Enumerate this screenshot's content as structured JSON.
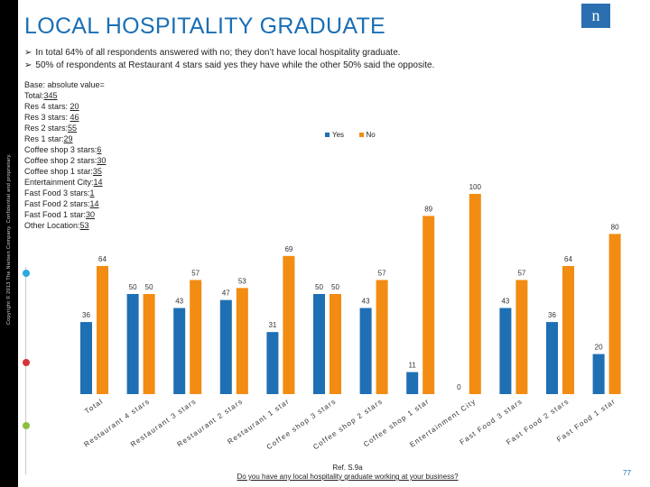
{
  "sidebar": {
    "copyright": "Copyright © 2013 The Nielsen Company. Confidential and proprietary."
  },
  "header": {
    "title": "LOCAL HOSPITALITY GRADUATE",
    "logo": "n"
  },
  "bullets": [
    "In total 64% of all respondents answered with no; they don’t have local hospitality graduate.",
    "50% of respondents at Restaurant 4 stars said yes they have while the other 50% said the opposite."
  ],
  "base": {
    "heading": "Base: absolute value=",
    "rows": [
      {
        "label": "Total:",
        "value": "345"
      },
      {
        "label": "Res 4 stars: ",
        "value": "20"
      },
      {
        "label": "Res 3 stars: ",
        "value": "46"
      },
      {
        "label": "Res 2 stars:",
        "value": "55"
      },
      {
        "label": "Res 1 star:",
        "value": "29"
      },
      {
        "label": "Coffee shop 3 stars:",
        "value": "6"
      },
      {
        "label": "Coffee shop 2 stars:",
        "value": "30"
      },
      {
        "label": "Coffee shop 1 star:",
        "value": "35"
      },
      {
        "label": "Entertainment City:",
        "value": "14"
      },
      {
        "label": "Fast Food 3 stars:",
        "value": "1"
      },
      {
        "label": "Fast Food 2 stars:",
        "value": "14"
      },
      {
        "label": "Fast Food 1 star:",
        "value": "30"
      },
      {
        "label": "Other Location:",
        "value": "53"
      }
    ]
  },
  "footer": {
    "ref": "Ref. S.9a",
    "question": "Do you have any local hospitality graduate working at your business?",
    "page": "77"
  },
  "colors": {
    "yes": "#1f6fb4",
    "no": "#f28c12",
    "title": "#1a6fb5",
    "dot1": "#29a9e0",
    "dot2": "#d6343b",
    "dot3": "#8bbf3d"
  },
  "chart_data": {
    "type": "bar",
    "categories": [
      "Total",
      "Restaurant 4 stars",
      "Restaurant 3 stars",
      "Restaurant 2 stars",
      "Restaurant 1 star",
      "Coffee shop 3 stars",
      "Coffee shop 2 stars",
      "Coffee shop 1 star",
      "Entertainment City",
      "Fast Food 3 stars",
      "Fast Food 2 stars",
      "Fast Food 1 star"
    ],
    "series": [
      {
        "name": "Yes",
        "values": [
          36,
          50,
          43,
          47,
          31,
          50,
          43,
          11,
          0,
          43,
          36,
          20
        ]
      },
      {
        "name": "No",
        "values": [
          64,
          50,
          57,
          53,
          69,
          50,
          57,
          89,
          100,
          57,
          64,
          80
        ]
      }
    ],
    "ylim": [
      0,
      100
    ],
    "legend": "top-center",
    "grid": false
  }
}
